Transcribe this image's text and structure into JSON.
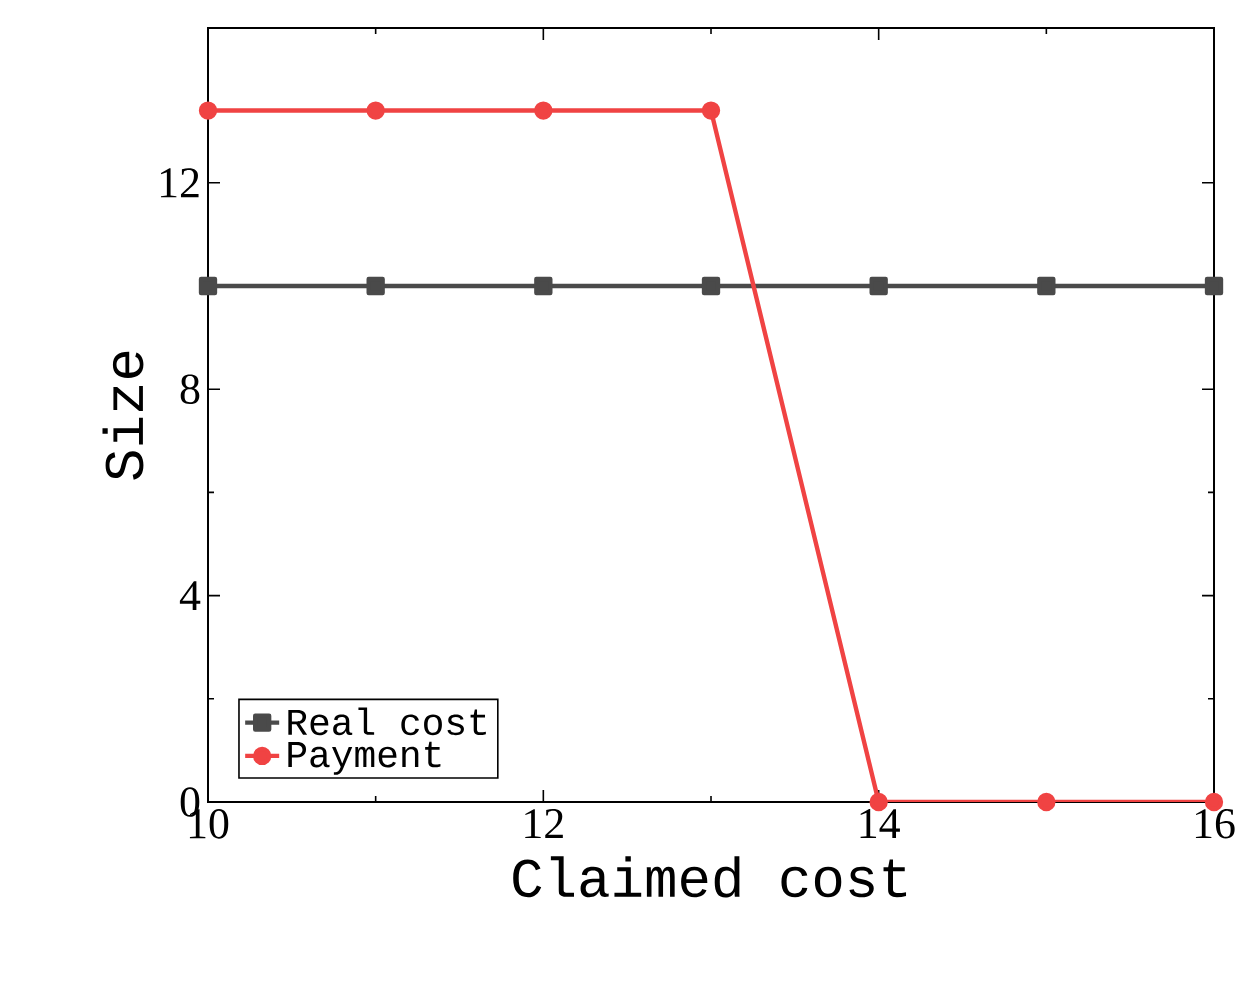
{
  "chart_data": {
    "type": "line",
    "xlabel": "Claimed cost",
    "ylabel": "Size",
    "x": [
      10,
      11,
      12,
      13,
      14,
      15,
      16
    ],
    "series": [
      {
        "name": "Real cost",
        "color": "#4a4a4a",
        "marker": "square",
        "values": [
          10,
          10,
          10,
          10,
          10,
          10,
          10
        ]
      },
      {
        "name": "Payment",
        "color": "#f04343",
        "marker": "circle",
        "values": [
          13.4,
          13.4,
          13.4,
          13.4,
          0,
          0,
          0
        ]
      }
    ],
    "xlim": [
      10,
      16
    ],
    "ylim": [
      0,
      15
    ],
    "xticks": [
      10,
      12,
      14,
      16
    ],
    "yticks": [
      0,
      4,
      8,
      12
    ],
    "legend": "bottom left",
    "grid": false,
    "line_style": "solid"
  }
}
